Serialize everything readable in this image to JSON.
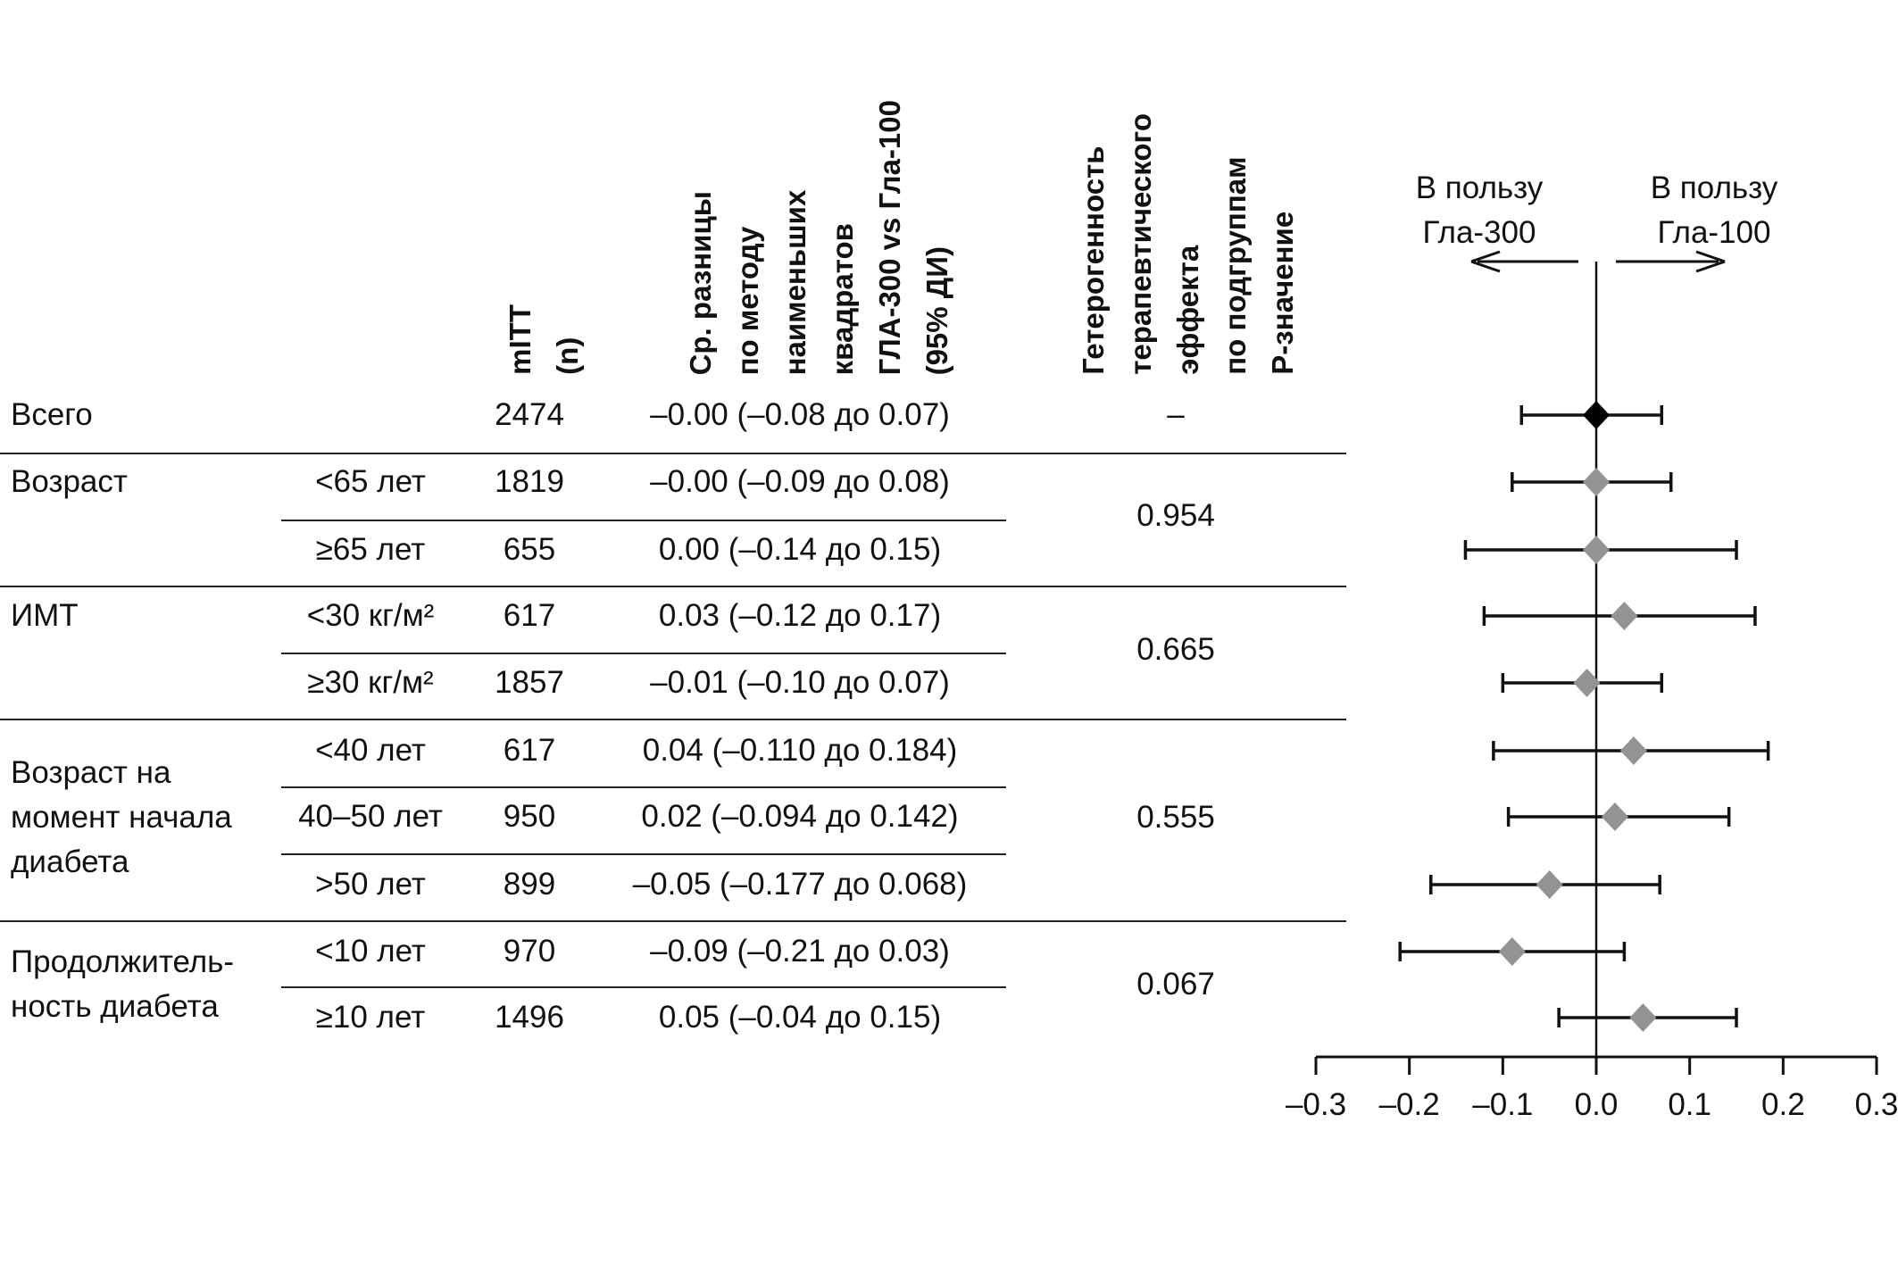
{
  "headers": {
    "mitt": [
      "mITT",
      "(n)"
    ],
    "ci": [
      "Ср. разницы",
      "по методу",
      "наименьших",
      "квадратов",
      "ГЛА-300 vs Гла-100",
      "(95% ДИ)"
    ],
    "p": [
      "Гетерогенность",
      "терапевтического",
      "эффекта",
      "по подгруппам",
      "Р-значение"
    ]
  },
  "groups": [
    {
      "label": "Всего",
      "p": "–"
    },
    {
      "label": "Возраст",
      "p": "0.954"
    },
    {
      "label": "ИМТ",
      "p": "0.665"
    },
    {
      "label": "Возраст на\nмомент начала\nдиабета",
      "p": "0.555"
    },
    {
      "label": "Продолжитель-\nность диабета",
      "p": "0.067"
    }
  ],
  "rows": [
    {
      "sub": "",
      "n": "2474",
      "ci": "–0.00 (–0.08 до 0.07)"
    },
    {
      "sub": "<65 лет",
      "n": "1819",
      "ci": "–0.00 (–0.09 до 0.08)"
    },
    {
      "sub": "≥65 лет",
      "n": "655",
      "ci": "0.00 (–0.14 до 0.15)"
    },
    {
      "sub": "<30 кг/м²",
      "n": "617",
      "ci": "0.03 (–0.12 до 0.17)"
    },
    {
      "sub": "≥30 кг/м²",
      "n": "1857",
      "ci": "–0.01 (–0.10 до 0.07)"
    },
    {
      "sub": "<40 лет",
      "n": "617",
      "ci": "0.04 (–0.110 до 0.184)"
    },
    {
      "sub": "40–50 лет",
      "n": "950",
      "ci": "0.02 (–0.094 до 0.142)"
    },
    {
      "sub": ">50 лет",
      "n": "899",
      "ci": "–0.05 (–0.177 до 0.068)"
    },
    {
      "sub": "<10 лет",
      "n": "970",
      "ci": "–0.09 (–0.21 до 0.03)"
    },
    {
      "sub": "≥10 лет",
      "n": "1496",
      "ci": "0.05 (–0.04 до 0.15)"
    }
  ],
  "chart_data": {
    "type": "scatter",
    "subtype": "forest",
    "xlim": [
      -0.3,
      0.3
    ],
    "xticks": [
      "–0.3",
      "–0.2",
      "–0.1",
      "0.0",
      "0.1",
      "0.2",
      "0.3"
    ],
    "left_label": [
      "В пользу",
      "Гла-300"
    ],
    "right_label": [
      "В пользу",
      "Гла-100"
    ],
    "points": [
      {
        "est": 0.0,
        "lo": -0.08,
        "hi": 0.07,
        "color": "#000000"
      },
      {
        "est": 0.0,
        "lo": -0.09,
        "hi": 0.08,
        "color": "#939393"
      },
      {
        "est": 0.0,
        "lo": -0.14,
        "hi": 0.15,
        "color": "#939393"
      },
      {
        "est": 0.03,
        "lo": -0.12,
        "hi": 0.17,
        "color": "#939393"
      },
      {
        "est": -0.01,
        "lo": -0.1,
        "hi": 0.07,
        "color": "#939393"
      },
      {
        "est": 0.04,
        "lo": -0.11,
        "hi": 0.184,
        "color": "#939393"
      },
      {
        "est": 0.02,
        "lo": -0.094,
        "hi": 0.142,
        "color": "#939393"
      },
      {
        "est": -0.05,
        "lo": -0.177,
        "hi": 0.068,
        "color": "#939393"
      },
      {
        "est": -0.09,
        "lo": -0.21,
        "hi": 0.03,
        "color": "#939393"
      },
      {
        "est": 0.05,
        "lo": -0.04,
        "hi": 0.15,
        "color": "#939393"
      }
    ]
  }
}
